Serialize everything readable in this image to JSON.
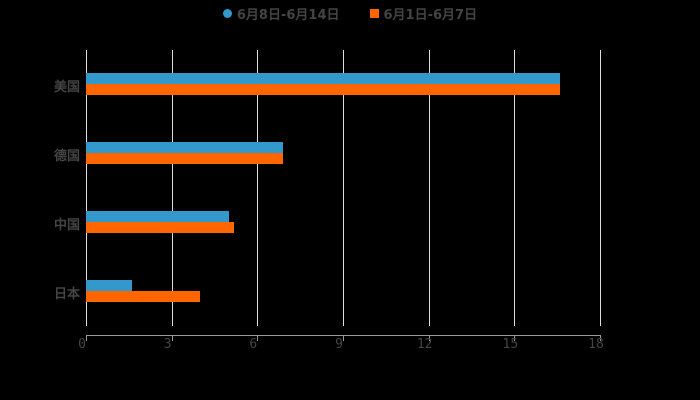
{
  "chart_data": {
    "type": "bar",
    "orientation": "horizontal",
    "title": "",
    "categories": [
      "美国",
      "德国",
      "中国",
      "日本"
    ],
    "series": [
      {
        "name": "6月8日-6月14日",
        "color": "#3399cc",
        "values": [
          16.6,
          6.9,
          5.0,
          1.6
        ]
      },
      {
        "name": "6月1日-6月7日",
        "color": "#ff6600",
        "values": [
          16.6,
          6.9,
          5.2,
          4.0
        ]
      }
    ],
    "xlabel": "",
    "ylabel": "",
    "xlim": [
      0,
      18
    ],
    "xticks": [
      "0",
      "3",
      "6",
      "9",
      "12",
      "15",
      "18"
    ],
    "grid": true,
    "legend_position": "top"
  },
  "legend": {
    "series1": "6月8日-6月14日",
    "series2": "6月1日-6月7日"
  }
}
